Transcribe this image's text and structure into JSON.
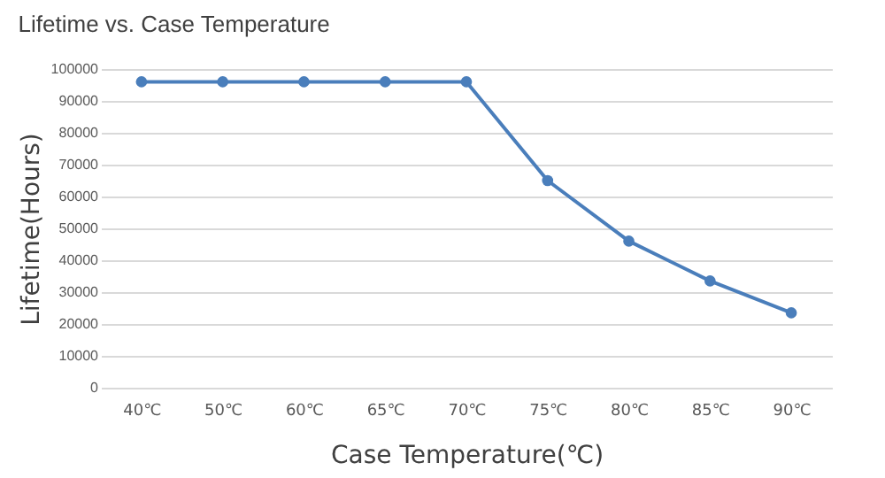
{
  "chart_data": {
    "type": "line",
    "title": "Lifetime vs. Case Temperature",
    "xlabel": "Case Temperature(℃)",
    "ylabel": "Lifetime(Hours)",
    "categories": [
      "40℃",
      "50℃",
      "60℃",
      "65℃",
      "70℃",
      "75℃",
      "80℃",
      "85℃",
      "90℃"
    ],
    "series": [
      {
        "color": "#4a7ebb",
        "values": [
          96000,
          96000,
          96000,
          96000,
          96000,
          65000,
          46000,
          33500,
          23500
        ]
      }
    ],
    "ylim": [
      0,
      100000
    ],
    "yticks": [
      0,
      10000,
      20000,
      30000,
      40000,
      50000,
      60000,
      70000,
      80000,
      90000,
      100000
    ],
    "grid": "y",
    "marker": "circle",
    "line_style": "solid"
  }
}
